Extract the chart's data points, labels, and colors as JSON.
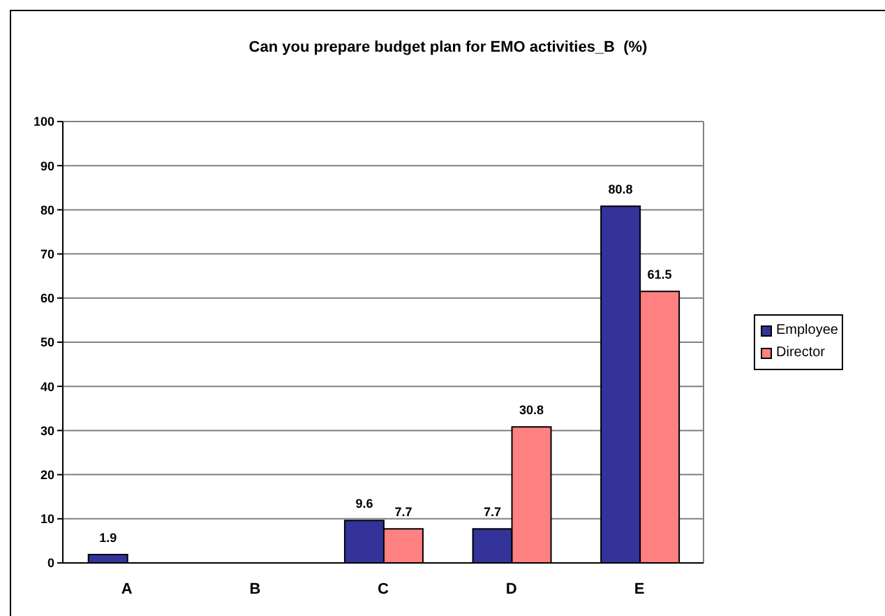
{
  "chart_data": {
    "type": "bar",
    "title": "Can you prepare budget plan for EMO activities_B  (%)",
    "categories": [
      "A",
      "B",
      "C",
      "D",
      "E"
    ],
    "series": [
      {
        "name": "Employee",
        "color": "#333399",
        "values": [
          1.9,
          null,
          9.6,
          7.7,
          80.8
        ]
      },
      {
        "name": "Director",
        "color": "#ff8080",
        "values": [
          null,
          null,
          7.7,
          30.8,
          61.5
        ]
      }
    ],
    "ylim": [
      0,
      100
    ],
    "yticks": [
      0,
      10,
      20,
      30,
      40,
      50,
      60,
      70,
      80,
      90,
      100
    ],
    "grid": "y",
    "legend": "right",
    "data_labels": true
  }
}
